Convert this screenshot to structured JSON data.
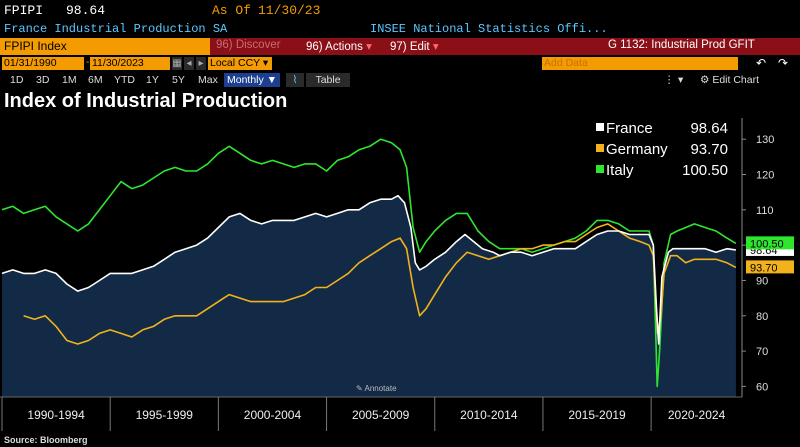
{
  "header": {
    "ticker": "FPIPI",
    "price": "98.64",
    "as_of_label": "As Of",
    "as_of_date": "11/30/23",
    "security_name": "France Industrial Production SA",
    "source_name": "INSEE National Statistics Offi..."
  },
  "command_bar": {
    "command": "FPIPI Index",
    "discover": "96) Discover",
    "actions": "96) Actions",
    "edit": "97) Edit",
    "page_title": "G 1132: Industrial Prod GFIT"
  },
  "range": {
    "start": "01/31/1990",
    "end": "11/30/2023",
    "currency": "Local CCY",
    "add_data_placeholder": "Add Data",
    "edit_chart": "Edit Chart"
  },
  "periods": [
    "1D",
    "3D",
    "1M",
    "6M",
    "YTD",
    "1Y",
    "5Y",
    "Max"
  ],
  "frequency": "Monthly",
  "table_label": "Table",
  "annotate_label": "Annotate",
  "source": "Source: Bloomberg",
  "colors": {
    "france": "#ffffff",
    "germany": "#f2b21b",
    "italy": "#2fe62f",
    "area": "#132a46",
    "command_orange": "#f39b00",
    "command_red": "#8a0f17"
  },
  "chart_data": {
    "type": "line",
    "title": "Index of Industrial Production",
    "x_tick_labels": [
      "1990-1994",
      "1995-1999",
      "2000-2004",
      "2005-2009",
      "2010-2014",
      "2015-2019",
      "2020-2024"
    ],
    "xlim": [
      1990.0,
      2024.2
    ],
    "ylim": [
      57,
      136
    ],
    "y_ticks": [
      60,
      70,
      80,
      90,
      100,
      110,
      120,
      130
    ],
    "grid": false,
    "legend_position": "top-right",
    "series": [
      {
        "name": "France",
        "last_value": "98.64",
        "color": "#ffffff",
        "filled": true,
        "points": [
          [
            1990.0,
            92
          ],
          [
            1990.5,
            93
          ],
          [
            1991.0,
            92
          ],
          [
            1991.5,
            92
          ],
          [
            1992.0,
            93
          ],
          [
            1992.5,
            92
          ],
          [
            1993.0,
            89
          ],
          [
            1993.5,
            87
          ],
          [
            1994.0,
            88
          ],
          [
            1994.5,
            90
          ],
          [
            1995.0,
            92
          ],
          [
            1995.5,
            92
          ],
          [
            1996.0,
            92
          ],
          [
            1996.5,
            93
          ],
          [
            1997.0,
            94
          ],
          [
            1997.5,
            96
          ],
          [
            1998.0,
            98
          ],
          [
            1998.5,
            99
          ],
          [
            1999.0,
            100
          ],
          [
            1999.5,
            102
          ],
          [
            2000.0,
            105
          ],
          [
            2000.5,
            108
          ],
          [
            2001.0,
            109
          ],
          [
            2001.5,
            107
          ],
          [
            2002.0,
            106
          ],
          [
            2002.5,
            107
          ],
          [
            2003.0,
            107
          ],
          [
            2003.5,
            107
          ],
          [
            2004.0,
            108
          ],
          [
            2004.5,
            109
          ],
          [
            2005.0,
            108
          ],
          [
            2005.5,
            109
          ],
          [
            2006.0,
            110
          ],
          [
            2006.5,
            110
          ],
          [
            2007.0,
            112
          ],
          [
            2007.5,
            113
          ],
          [
            2008.0,
            113
          ],
          [
            2008.3,
            114
          ],
          [
            2008.6,
            112
          ],
          [
            2008.9,
            105
          ],
          [
            2009.1,
            95
          ],
          [
            2009.3,
            93
          ],
          [
            2009.6,
            94
          ],
          [
            2010.0,
            96
          ],
          [
            2010.5,
            98
          ],
          [
            2011.0,
            101
          ],
          [
            2011.4,
            103
          ],
          [
            2011.8,
            101
          ],
          [
            2012.2,
            99
          ],
          [
            2012.7,
            98
          ],
          [
            2013.0,
            97
          ],
          [
            2013.5,
            98
          ],
          [
            2014.0,
            98
          ],
          [
            2014.5,
            97
          ],
          [
            2015.0,
            98
          ],
          [
            2015.5,
            99
          ],
          [
            2016.0,
            99
          ],
          [
            2016.5,
            99
          ],
          [
            2017.0,
            101
          ],
          [
            2017.5,
            103
          ],
          [
            2018.0,
            104
          ],
          [
            2018.5,
            104
          ],
          [
            2019.0,
            103
          ],
          [
            2019.5,
            103
          ],
          [
            2019.9,
            103
          ],
          [
            2020.1,
            100
          ],
          [
            2020.25,
            82
          ],
          [
            2020.35,
            72
          ],
          [
            2020.5,
            91
          ],
          [
            2020.8,
            98
          ],
          [
            2021.0,
            99
          ],
          [
            2021.5,
            99
          ],
          [
            2022.0,
            99
          ],
          [
            2022.5,
            99
          ],
          [
            2023.0,
            98
          ],
          [
            2023.5,
            99
          ],
          [
            2023.92,
            98.64
          ]
        ]
      },
      {
        "name": "Germany",
        "last_value": "93.70",
        "color": "#f2b21b",
        "filled": false,
        "points": [
          [
            1991.0,
            80
          ],
          [
            1991.5,
            79
          ],
          [
            1992.0,
            80
          ],
          [
            1992.5,
            77
          ],
          [
            1993.0,
            73
          ],
          [
            1993.5,
            72
          ],
          [
            1994.0,
            73
          ],
          [
            1994.5,
            75
          ],
          [
            1995.0,
            76
          ],
          [
            1995.5,
            75
          ],
          [
            1996.0,
            74
          ],
          [
            1996.5,
            76
          ],
          [
            1997.0,
            77
          ],
          [
            1997.5,
            79
          ],
          [
            1998.0,
            80
          ],
          [
            1998.5,
            80
          ],
          [
            1999.0,
            80
          ],
          [
            1999.5,
            82
          ],
          [
            2000.0,
            84
          ],
          [
            2000.5,
            86
          ],
          [
            2001.0,
            85
          ],
          [
            2001.5,
            84
          ],
          [
            2002.0,
            84
          ],
          [
            2002.5,
            84
          ],
          [
            2003.0,
            84
          ],
          [
            2003.5,
            85
          ],
          [
            2004.0,
            86
          ],
          [
            2004.5,
            88
          ],
          [
            2005.0,
            88
          ],
          [
            2005.5,
            90
          ],
          [
            2006.0,
            92
          ],
          [
            2006.5,
            95
          ],
          [
            2007.0,
            97
          ],
          [
            2007.5,
            99
          ],
          [
            2008.0,
            101
          ],
          [
            2008.4,
            102
          ],
          [
            2008.7,
            99
          ],
          [
            2009.0,
            88
          ],
          [
            2009.3,
            80
          ],
          [
            2009.6,
            82
          ],
          [
            2010.0,
            86
          ],
          [
            2010.5,
            91
          ],
          [
            2011.0,
            95
          ],
          [
            2011.5,
            98
          ],
          [
            2012.0,
            97
          ],
          [
            2012.5,
            96
          ],
          [
            2013.0,
            97
          ],
          [
            2013.5,
            98
          ],
          [
            2014.0,
            99
          ],
          [
            2014.5,
            99
          ],
          [
            2015.0,
            100
          ],
          [
            2015.5,
            100
          ],
          [
            2016.0,
            101
          ],
          [
            2016.5,
            101
          ],
          [
            2017.0,
            103
          ],
          [
            2017.5,
            105
          ],
          [
            2018.0,
            106
          ],
          [
            2018.5,
            104
          ],
          [
            2019.0,
            102
          ],
          [
            2019.5,
            101
          ],
          [
            2019.9,
            100
          ],
          [
            2020.1,
            97
          ],
          [
            2020.3,
            75
          ],
          [
            2020.45,
            80
          ],
          [
            2020.6,
            92
          ],
          [
            2020.9,
            97
          ],
          [
            2021.2,
            97
          ],
          [
            2021.6,
            95
          ],
          [
            2022.0,
            96
          ],
          [
            2022.5,
            96
          ],
          [
            2023.0,
            96
          ],
          [
            2023.5,
            95
          ],
          [
            2023.92,
            93.7
          ]
        ]
      },
      {
        "name": "Italy",
        "last_value": "100.50",
        "color": "#2fe62f",
        "filled": false,
        "points": [
          [
            1990.0,
            110
          ],
          [
            1990.5,
            111
          ],
          [
            1991.0,
            109
          ],
          [
            1991.5,
            110
          ],
          [
            1992.0,
            111
          ],
          [
            1992.5,
            108
          ],
          [
            1993.0,
            106
          ],
          [
            1993.5,
            104
          ],
          [
            1994.0,
            106
          ],
          [
            1994.5,
            110
          ],
          [
            1995.0,
            114
          ],
          [
            1995.5,
            118
          ],
          [
            1996.0,
            116
          ],
          [
            1996.5,
            117
          ],
          [
            1997.0,
            119
          ],
          [
            1997.5,
            121
          ],
          [
            1998.0,
            122
          ],
          [
            1998.5,
            121
          ],
          [
            1999.0,
            121
          ],
          [
            1999.5,
            123
          ],
          [
            2000.0,
            126
          ],
          [
            2000.5,
            128
          ],
          [
            2001.0,
            126
          ],
          [
            2001.5,
            124
          ],
          [
            2002.0,
            123
          ],
          [
            2002.5,
            124
          ],
          [
            2003.0,
            123
          ],
          [
            2003.5,
            122
          ],
          [
            2004.0,
            123
          ],
          [
            2004.5,
            123
          ],
          [
            2005.0,
            121
          ],
          [
            2005.5,
            124
          ],
          [
            2006.0,
            125
          ],
          [
            2006.5,
            127
          ],
          [
            2007.0,
            128
          ],
          [
            2007.5,
            130
          ],
          [
            2008.0,
            129
          ],
          [
            2008.4,
            127
          ],
          [
            2008.7,
            122
          ],
          [
            2009.0,
            105
          ],
          [
            2009.3,
            98
          ],
          [
            2009.6,
            101
          ],
          [
            2010.0,
            104
          ],
          [
            2010.5,
            107
          ],
          [
            2011.0,
            109
          ],
          [
            2011.5,
            109
          ],
          [
            2012.0,
            104
          ],
          [
            2012.5,
            101
          ],
          [
            2013.0,
            99
          ],
          [
            2013.5,
            99
          ],
          [
            2014.0,
            99
          ],
          [
            2014.5,
            98
          ],
          [
            2015.0,
            99
          ],
          [
            2015.5,
            100
          ],
          [
            2016.0,
            101
          ],
          [
            2016.5,
            102
          ],
          [
            2017.0,
            104
          ],
          [
            2017.5,
            107
          ],
          [
            2018.0,
            107
          ],
          [
            2018.5,
            106
          ],
          [
            2019.0,
            104
          ],
          [
            2019.5,
            104
          ],
          [
            2019.9,
            104
          ],
          [
            2020.1,
            100
          ],
          [
            2020.28,
            60
          ],
          [
            2020.4,
            71
          ],
          [
            2020.6,
            95
          ],
          [
            2020.9,
            103
          ],
          [
            2021.2,
            104
          ],
          [
            2021.6,
            105
          ],
          [
            2022.0,
            106
          ],
          [
            2022.5,
            105
          ],
          [
            2023.0,
            104
          ],
          [
            2023.5,
            102
          ],
          [
            2023.92,
            100.5
          ]
        ]
      }
    ]
  }
}
